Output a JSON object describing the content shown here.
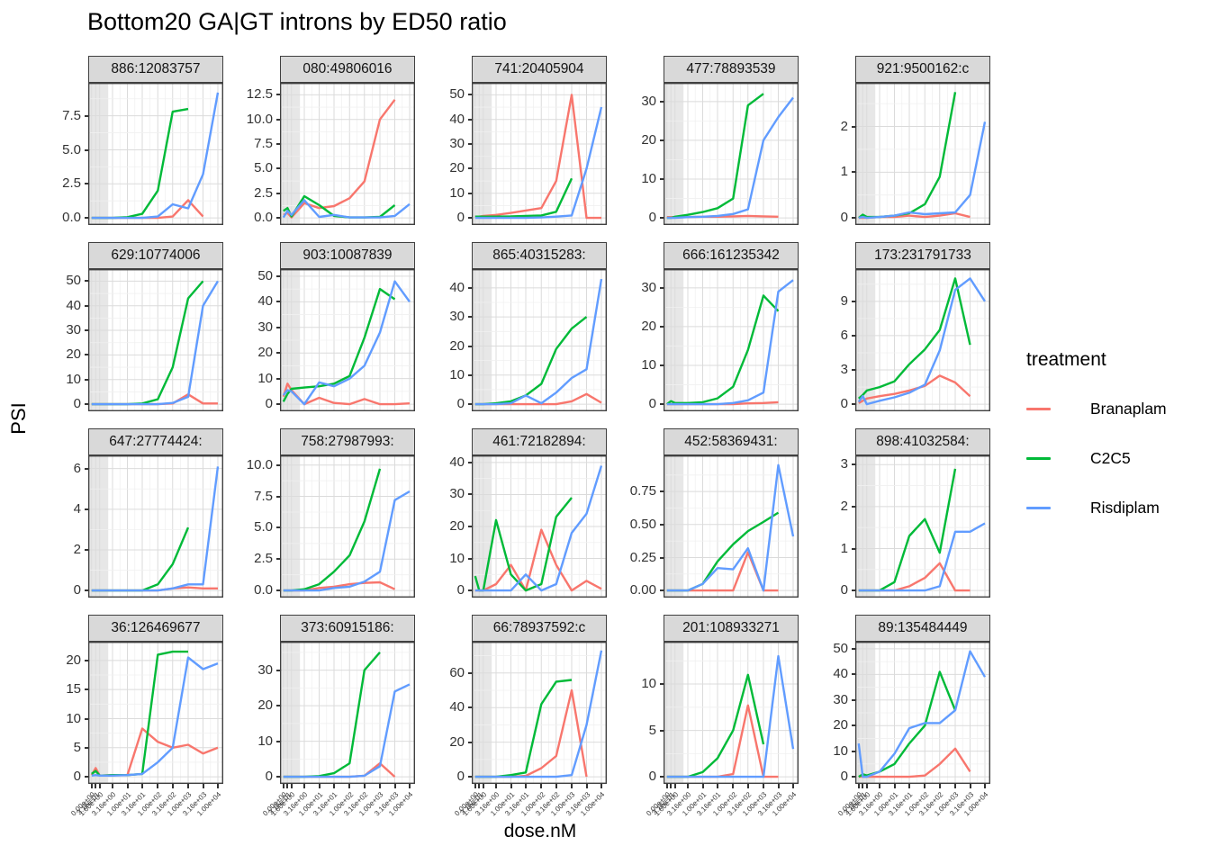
{
  "title": "Bottom20 GA|GT introns by ED50 ratio",
  "axis": {
    "x_label": "dose.nM",
    "y_label": "PSI"
  },
  "legend": {
    "title": "treatment",
    "entries": [
      {
        "label": "Branaplam",
        "color": "#F8766D"
      },
      {
        "label": "C2C5",
        "color": "#00BA38"
      },
      {
        "label": "Risdiplam",
        "color": "#619CFF"
      }
    ]
  },
  "colors": {
    "branaplam": "#F8766D",
    "c2c5": "#00BA38",
    "risdiplam": "#619CFF",
    "strip_bg": "#D9D9D9",
    "panel_border": "#404040"
  },
  "chart_data": {
    "type": "line",
    "xlabel": "dose.nM",
    "ylabel": "PSI",
    "legend_position": "right",
    "grid": true,
    "x_scale": "pseudo-log",
    "doses": [
      0,
      0.316,
      1,
      3.16,
      10,
      31.6,
      100,
      316,
      1000,
      3160,
      10000
    ],
    "x_tick_labels": [
      "0.00e+00",
      "3.16e-01",
      "1.00e+00",
      "3.16e+00",
      "1.00e+01",
      "3.16e+01",
      "1.00e+02",
      "3.16e+02",
      "1.00e+03",
      "3.16e+03",
      "1.00e+04"
    ],
    "series_names": [
      "Branaplam",
      "C2C5",
      "Risdiplam"
    ],
    "facets": [
      {
        "strip": "886:12083757",
        "yticks": [
          0,
          2.5,
          5,
          7.5
        ],
        "ylabels": [
          "0.0",
          "2.5",
          "5.0",
          "7.5"
        ],
        "ymax": 9.4,
        "series": {
          "Branaplam": [
            0,
            0,
            0,
            0,
            0,
            0,
            0,
            0.1,
            1.3,
            0.1,
            null
          ],
          "C2C5": [
            0,
            0,
            0,
            0,
            0.05,
            0.3,
            2.0,
            7.8,
            8.0,
            null,
            null
          ],
          "Risdiplam": [
            0,
            0,
            0,
            0,
            0,
            0,
            0.1,
            1.0,
            0.7,
            3.2,
            9.2
          ]
        }
      },
      {
        "strip": "080:49806016",
        "yticks": [
          0,
          2.5,
          5,
          7.5,
          10,
          12.5
        ],
        "ylabels": [
          "0.0",
          "2.5",
          "5.0",
          "7.5",
          "10.0",
          "12.5"
        ],
        "ymax": 13,
        "series": {
          "Branaplam": [
            0.3,
            0.5,
            0.05,
            1.5,
            1.0,
            1.2,
            2.0,
            3.7,
            10.0,
            12.0,
            null
          ],
          "C2C5": [
            0.7,
            1.0,
            0.15,
            2.2,
            1.3,
            0.2,
            0.05,
            0.05,
            0.1,
            1.3,
            null
          ],
          "Risdiplam": [
            0.05,
            0.7,
            0.3,
            1.8,
            0.1,
            0.3,
            0.05,
            0.05,
            0.05,
            0.2,
            1.4
          ]
        }
      },
      {
        "strip": "741:20405904",
        "yticks": [
          0,
          10,
          20,
          30,
          40,
          50
        ],
        "ylabels": [
          "0",
          "10",
          "20",
          "30",
          "40",
          "50"
        ],
        "ymax": 52,
        "series": {
          "Branaplam": [
            0.5,
            0.5,
            0.8,
            1.2,
            2,
            3,
            4,
            15,
            50,
            0,
            0
          ],
          "C2C5": [
            0.5,
            0.5,
            0.5,
            0.5,
            0.6,
            0.8,
            1,
            2.5,
            16,
            null,
            null
          ],
          "Risdiplam": [
            0,
            0,
            0,
            0,
            0,
            0,
            0.2,
            0.5,
            1,
            20,
            45
          ]
        }
      },
      {
        "strip": "477:78893539",
        "yticks": [
          0,
          10,
          20,
          30
        ],
        "ylabels": [
          "0",
          "10",
          "20",
          "30"
        ],
        "ymax": 33,
        "series": {
          "Branaplam": [
            0.2,
            0.2,
            0.2,
            0.2,
            0.3,
            0.3,
            0.4,
            0.5,
            0.4,
            0.3,
            null
          ],
          "C2C5": [
            0,
            0,
            0.3,
            0.8,
            1.5,
            2.5,
            5,
            29,
            32,
            null,
            null
          ],
          "Risdiplam": [
            0,
            0,
            0,
            0.2,
            0.3,
            0.5,
            1,
            2.2,
            20,
            26,
            31
          ]
        }
      },
      {
        "strip": "921:9500162:c",
        "yticks": [
          0,
          1,
          2
        ],
        "ylabels": [
          "0",
          "1",
          "2"
        ],
        "ymax": 2.8,
        "series": {
          "Branaplam": [
            0,
            0,
            0,
            0.02,
            0.02,
            0.05,
            0.02,
            0.05,
            0.1,
            0.02,
            null
          ],
          "C2C5": [
            0,
            0.07,
            0.02,
            0.02,
            0.05,
            0.1,
            0.3,
            0.9,
            2.75,
            null,
            null
          ],
          "Risdiplam": [
            0,
            0.02,
            0,
            0.02,
            0.05,
            0.12,
            0.08,
            0.1,
            0.12,
            0.5,
            2.1
          ]
        }
      },
      {
        "strip": "629:10774006",
        "yticks": [
          0,
          10,
          20,
          30,
          40,
          50
        ],
        "ylabels": [
          "0",
          "10",
          "20",
          "30",
          "40",
          "50"
        ],
        "ymax": 52,
        "series": {
          "Branaplam": [
            0,
            0,
            0,
            0,
            0,
            0,
            0,
            0.3,
            4,
            0.3,
            0.3
          ],
          "C2C5": [
            0,
            0,
            0,
            0,
            0,
            0.3,
            2,
            15,
            43,
            50,
            null
          ],
          "Risdiplam": [
            0,
            0,
            0,
            0,
            0,
            0,
            0,
            0.5,
            3,
            40,
            50
          ]
        }
      },
      {
        "strip": "903:10087839",
        "yticks": [
          0,
          10,
          20,
          30,
          40,
          50
        ],
        "ylabels": [
          "0",
          "10",
          "20",
          "30",
          "40",
          "50"
        ],
        "ymax": 50,
        "series": {
          "Branaplam": [
            3,
            8,
            5.5,
            0,
            2.5,
            0.5,
            0,
            2,
            0,
            0,
            0.3
          ],
          "C2C5": [
            1,
            4,
            6,
            6.5,
            7,
            8,
            11,
            26,
            45,
            41,
            null
          ],
          "Risdiplam": [
            3.5,
            5.5,
            5,
            0,
            8.5,
            7,
            10,
            15,
            28,
            48,
            40
          ]
        }
      },
      {
        "strip": "865:40315283:",
        "yticks": [
          0,
          10,
          20,
          30,
          40
        ],
        "ylabels": [
          "0",
          "10",
          "20",
          "30",
          "40"
        ],
        "ymax": 44,
        "series": {
          "Branaplam": [
            0,
            0,
            0,
            0,
            0,
            0,
            0,
            0,
            1,
            3.5,
            0.5
          ],
          "C2C5": [
            0,
            0,
            0,
            0.3,
            1,
            3,
            7,
            19,
            26,
            30,
            null
          ],
          "Risdiplam": [
            0,
            0,
            0,
            0,
            0.3,
            3,
            0.3,
            4,
            9,
            12,
            43
          ]
        }
      },
      {
        "strip": "666:161235342",
        "yticks": [
          0,
          10,
          20,
          30
        ],
        "ylabels": [
          "0",
          "10",
          "20",
          "30"
        ],
        "ymax": 33,
        "series": {
          "Branaplam": [
            0,
            0,
            0,
            0,
            0,
            0,
            0,
            0.2,
            0.3,
            0.5,
            null
          ],
          "C2C5": [
            0,
            0.8,
            0.3,
            0.3,
            0.5,
            1.5,
            4.5,
            14,
            28,
            24,
            null
          ],
          "Risdiplam": [
            0,
            0,
            0,
            0,
            0,
            0,
            0.3,
            1,
            3,
            29,
            32
          ]
        }
      },
      {
        "strip": "173:231791733",
        "yticks": [
          0,
          3,
          6,
          9
        ],
        "ylabels": [
          "0",
          "3",
          "6",
          "9"
        ],
        "ymax": 11.2,
        "series": {
          "Branaplam": [
            0.1,
            0.3,
            0.5,
            0.7,
            0.9,
            1.2,
            1.6,
            2.5,
            1.9,
            0.7,
            null
          ],
          "C2C5": [
            0.5,
            0.8,
            1.2,
            1.5,
            2,
            3.5,
            4.8,
            6.5,
            11,
            5.2,
            null
          ],
          "Risdiplam": [
            0.2,
            0.7,
            0,
            0.3,
            0.6,
            1,
            1.7,
            4.7,
            10,
            11,
            9
          ]
        }
      },
      {
        "strip": "647:27774424:",
        "yticks": [
          0,
          2,
          4,
          6
        ],
        "ylabels": [
          "0",
          "2",
          "4",
          "6"
        ],
        "ymax": 6.3,
        "series": {
          "Branaplam": [
            0,
            0,
            0,
            0,
            0,
            0,
            0,
            0.1,
            0.15,
            0.1,
            0.1
          ],
          "C2C5": [
            0,
            0,
            0,
            0,
            0,
            0,
            0.3,
            1.3,
            3.1,
            null,
            null
          ],
          "Risdiplam": [
            0,
            0,
            0,
            0,
            0,
            0,
            0,
            0.1,
            0.3,
            0.3,
            6.1
          ]
        }
      },
      {
        "strip": "758:27987993:",
        "yticks": [
          0,
          2.5,
          5,
          7.5,
          10
        ],
        "ylabels": [
          "0.0",
          "2.5",
          "5.0",
          "7.5",
          "10.0"
        ],
        "ymax": 10.2,
        "series": {
          "Branaplam": [
            0,
            0,
            0,
            0,
            0.2,
            0.3,
            0.5,
            0.6,
            0.65,
            0.1,
            null
          ],
          "C2C5": [
            0,
            0,
            0,
            0.1,
            0.5,
            1.5,
            2.8,
            5.5,
            9.7,
            null,
            null
          ],
          "Risdiplam": [
            0,
            0,
            0,
            0,
            0,
            0.2,
            0.3,
            0.7,
            1.5,
            7.2,
            7.9
          ]
        }
      },
      {
        "strip": "461:72182894:",
        "yticks": [
          0,
          10,
          20,
          30,
          40
        ],
        "ylabels": [
          "0",
          "10",
          "20",
          "30",
          "40"
        ],
        "ymax": 40,
        "series": {
          "Branaplam": [
            0,
            0,
            0,
            2,
            8,
            0,
            19,
            8,
            0,
            3,
            0.5
          ],
          "C2C5": [
            4.5,
            0,
            0,
            22,
            5,
            0,
            2,
            23,
            29,
            null,
            null
          ],
          "Risdiplam": [
            0,
            0,
            0,
            0,
            0,
            5,
            0,
            2,
            18,
            24,
            39
          ]
        }
      },
      {
        "strip": "452:58369431:",
        "yticks": [
          0,
          0.25,
          0.5,
          0.75
        ],
        "ylabels": [
          "0.00",
          "0.25",
          "0.50",
          "0.75"
        ],
        "ymax": 0.97,
        "series": {
          "Branaplam": [
            0,
            0,
            0,
            0,
            0,
            0,
            0,
            0.29,
            0,
            0,
            null
          ],
          "C2C5": [
            0,
            0,
            0,
            0,
            0.05,
            0.22,
            0.35,
            0.45,
            0.52,
            0.59,
            null
          ],
          "Risdiplam": [
            0,
            0,
            0,
            0,
            0.05,
            0.17,
            0.16,
            0.32,
            0,
            0.95,
            0.41
          ]
        }
      },
      {
        "strip": "898:41032584:",
        "yticks": [
          0,
          1,
          2,
          3
        ],
        "ylabels": [
          "0",
          "1",
          "2",
          "3"
        ],
        "ymax": 3.05,
        "series": {
          "Branaplam": [
            0,
            0,
            0,
            0,
            0,
            0.1,
            0.3,
            0.65,
            0,
            0,
            null
          ],
          "C2C5": [
            0,
            0,
            0,
            0,
            0.2,
            1.3,
            1.7,
            0.9,
            2.9,
            null,
            null
          ],
          "Risdiplam": [
            0,
            0,
            0,
            0,
            0,
            0,
            0,
            0.1,
            1.4,
            1.4,
            1.6
          ]
        }
      },
      {
        "strip": "36:126469677",
        "yticks": [
          0,
          5,
          10,
          15,
          20
        ],
        "ylabels": [
          "0",
          "5",
          "10",
          "15",
          "20"
        ],
        "ymax": 22,
        "series": {
          "Branaplam": [
            0.3,
            1.5,
            0.2,
            0.3,
            0.3,
            8.3,
            6,
            5,
            5.5,
            4,
            5
          ],
          "C2C5": [
            0.5,
            1,
            0.2,
            0.3,
            0.3,
            0.5,
            21,
            21.5,
            21.5,
            null,
            null
          ],
          "Risdiplam": [
            0.2,
            0.3,
            0.2,
            0.2,
            0.3,
            0.5,
            2.5,
            5,
            20.5,
            18.5,
            19.5
          ]
        }
      },
      {
        "strip": "373:60915186:",
        "yticks": [
          0,
          10,
          20,
          30
        ],
        "ylabels": [
          "0",
          "10",
          "20",
          "30"
        ],
        "ymax": 36,
        "series": {
          "Branaplam": [
            0,
            0,
            0,
            0,
            0,
            0,
            0,
            0.3,
            3.8,
            0,
            null
          ],
          "C2C5": [
            0,
            0,
            0,
            0,
            0.2,
            1,
            3.8,
            30,
            35,
            null,
            null
          ],
          "Risdiplam": [
            0,
            0,
            0,
            0,
            0,
            0,
            0,
            0.3,
            3,
            24,
            26
          ]
        }
      },
      {
        "strip": "66:78937592:c",
        "yticks": [
          0,
          20,
          40,
          60
        ],
        "ylabels": [
          "0",
          "20",
          "40",
          "60"
        ],
        "ymax": 74,
        "series": {
          "Branaplam": [
            0,
            0,
            0,
            0,
            0,
            0.5,
            5,
            12,
            50,
            0,
            null
          ],
          "C2C5": [
            0,
            0,
            0,
            0,
            1,
            2.5,
            42,
            55,
            56,
            null,
            null
          ],
          "Risdiplam": [
            0,
            0,
            0,
            0,
            0,
            0,
            0,
            0,
            1,
            30,
            73
          ]
        }
      },
      {
        "strip": "201:108933271",
        "yticks": [
          0,
          5,
          10
        ],
        "ylabels": [
          "0",
          "5",
          "10"
        ],
        "ymax": 13.8,
        "series": {
          "Branaplam": [
            0,
            0,
            0,
            0,
            0,
            0,
            0.3,
            7.7,
            0,
            0,
            null
          ],
          "C2C5": [
            0,
            0,
            0,
            0,
            0.5,
            2,
            5,
            11,
            3.5,
            null,
            null
          ],
          "Risdiplam": [
            0,
            0,
            0,
            0,
            0,
            0,
            0,
            0,
            0,
            13,
            3
          ]
        }
      },
      {
        "strip": "89:135484449",
        "yticks": [
          0,
          10,
          20,
          30,
          40,
          50
        ],
        "ylabels": [
          "0",
          "10",
          "20",
          "30",
          "40",
          "50"
        ],
        "ymax": 50,
        "series": {
          "Branaplam": [
            0,
            0,
            0,
            0,
            0,
            0,
            0.5,
            5,
            11,
            2,
            null
          ],
          "C2C5": [
            0,
            1,
            0.5,
            2,
            5,
            13,
            20,
            41,
            26,
            null,
            null
          ],
          "Risdiplam": [
            13,
            0,
            0,
            2,
            9,
            19,
            21,
            21,
            26,
            49,
            39
          ]
        }
      }
    ]
  }
}
